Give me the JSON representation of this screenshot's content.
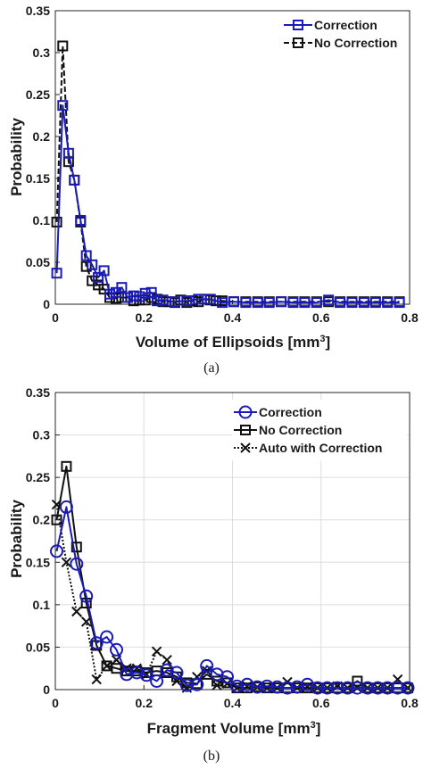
{
  "chart_data": [
    {
      "type": "line",
      "panel_label": "(a)",
      "xlabel_main": "Volume of Ellipsoids [mm",
      "xlabel_sup": "3",
      "xlabel_end": "]",
      "ylabel": "Probability",
      "xlim": [
        0,
        0.8
      ],
      "ylim": [
        0,
        0.35
      ],
      "xticks": [
        "0",
        "0.2",
        "0.4",
        "0.6",
        "0.8"
      ],
      "yticks": [
        "0",
        "0.05",
        "0.1",
        "0.15",
        "0.2",
        "0.25",
        "0.3",
        "0.35"
      ],
      "grid": false,
      "legend": "top-right",
      "series": [
        {
          "name": "Correction",
          "color": "#1a1ab8",
          "dash": "solid",
          "marker": "square",
          "x": [
            0.0033,
            0.0167,
            0.03,
            0.043,
            0.057,
            0.07,
            0.083,
            0.097,
            0.11,
            0.123,
            0.137,
            0.15,
            0.163,
            0.177,
            0.19,
            0.203,
            0.217,
            0.23,
            0.243,
            0.27,
            0.297,
            0.323,
            0.35,
            0.377,
            0.403,
            0.43,
            0.457,
            0.483,
            0.51,
            0.537,
            0.563,
            0.59,
            0.617,
            0.643,
            0.67,
            0.697,
            0.723,
            0.75,
            0.777
          ],
          "y": [
            0.037,
            0.237,
            0.18,
            0.148,
            0.1,
            0.058,
            0.047,
            0.032,
            0.04,
            0.012,
            0.014,
            0.02,
            0.008,
            0.01,
            0.009,
            0.013,
            0.014,
            0.004,
            0.005,
            0.003,
            0.004,
            0.006,
            0.006,
            0.002,
            0.003,
            0.002,
            0.002,
            0.002,
            0.003,
            0.002,
            0.002,
            0.002,
            0.005,
            0.002,
            0.002,
            0.002,
            0.002,
            0.002,
            0.002
          ]
        },
        {
          "name": "No Correction",
          "color": "#111111",
          "dash": "dashed",
          "marker": "square",
          "x": [
            0.0033,
            0.0167,
            0.03,
            0.043,
            0.057,
            0.07,
            0.083,
            0.097,
            0.11,
            0.123,
            0.137,
            0.15,
            0.163,
            0.177,
            0.19,
            0.203,
            0.217,
            0.23,
            0.243,
            0.257,
            0.27,
            0.283,
            0.297,
            0.31,
            0.323,
            0.337,
            0.35,
            0.363,
            0.377,
            0.403,
            0.43,
            0.457,
            0.483,
            0.51,
            0.537,
            0.563,
            0.59,
            0.617,
            0.643,
            0.67,
            0.697,
            0.723,
            0.75,
            0.777
          ],
          "y": [
            0.098,
            0.308,
            0.17,
            0.148,
            0.098,
            0.045,
            0.028,
            0.023,
            0.018,
            0.008,
            0.007,
            0.008,
            0.008,
            0.004,
            0.005,
            0.005,
            0.008,
            0.006,
            0.003,
            0.003,
            0.002,
            0.005,
            0.002,
            0.004,
            0.003,
            0.006,
            0.005,
            0.004,
            0.004,
            0.003,
            0.003,
            0.003,
            0.003,
            0.003,
            0.003,
            0.003,
            0.003,
            0.003,
            0.003,
            0.003,
            0.003,
            0.003,
            0.003,
            0.003
          ]
        }
      ]
    },
    {
      "type": "line",
      "panel_label": "(b)",
      "xlabel_main": "Fragment Volume [mm",
      "xlabel_sup": "3",
      "xlabel_end": "]",
      "ylabel": "Probability",
      "xlim": [
        0,
        0.8
      ],
      "ylim": [
        0,
        0.35
      ],
      "xticks": [
        "0",
        "0.2",
        "0.4",
        "0.6",
        "0.8"
      ],
      "yticks": [
        "0",
        "0.05",
        "0.1",
        "0.15",
        "0.2",
        "0.25",
        "0.3",
        "0.35"
      ],
      "grid": true,
      "legend": "top-right",
      "series": [
        {
          "name": "Correction",
          "color": "#1a1ab8",
          "dash": "solid",
          "marker": "circle",
          "x": [
            0.003,
            0.025,
            0.048,
            0.07,
            0.093,
            0.116,
            0.138,
            0.161,
            0.184,
            0.206,
            0.229,
            0.252,
            0.274,
            0.297,
            0.32,
            0.342,
            0.365,
            0.388,
            0.41,
            0.433,
            0.456,
            0.478,
            0.501,
            0.524,
            0.546,
            0.569,
            0.592,
            0.614,
            0.637,
            0.66,
            0.682,
            0.705,
            0.728,
            0.75,
            0.773,
            0.796
          ],
          "y": [
            0.163,
            0.215,
            0.148,
            0.11,
            0.055,
            0.062,
            0.047,
            0.018,
            0.02,
            0.017,
            0.01,
            0.023,
            0.02,
            0.005,
            0.006,
            0.028,
            0.018,
            0.015,
            0.004,
            0.006,
            0.003,
            0.004,
            0.003,
            0.002,
            0.003,
            0.006,
            0.002,
            0.002,
            0.002,
            0.002,
            0.002,
            0.002,
            0.002,
            0.002,
            0.002,
            0.002
          ]
        },
        {
          "name": "No Correction",
          "color": "#111111",
          "dash": "solid",
          "marker": "square",
          "x": [
            0.003,
            0.025,
            0.048,
            0.07,
            0.093,
            0.116,
            0.138,
            0.161,
            0.184,
            0.206,
            0.229,
            0.252,
            0.274,
            0.297,
            0.32,
            0.342,
            0.365,
            0.388,
            0.41,
            0.433,
            0.456,
            0.478,
            0.501,
            0.524,
            0.546,
            0.569,
            0.592,
            0.614,
            0.637,
            0.66,
            0.682,
            0.705,
            0.728,
            0.75,
            0.773,
            0.796
          ],
          "y": [
            0.2,
            0.263,
            0.168,
            0.102,
            0.052,
            0.028,
            0.025,
            0.022,
            0.022,
            0.02,
            0.022,
            0.02,
            0.015,
            0.008,
            0.007,
            0.018,
            0.01,
            0.008,
            0.002,
            0.002,
            0.003,
            0.002,
            0.002,
            0.002,
            0.002,
            0.002,
            0.002,
            0.002,
            0.002,
            0.002,
            0.01,
            0.002,
            0.002,
            0.002,
            0.002,
            0.002
          ]
        },
        {
          "name": "Auto with Correction",
          "color": "#111111",
          "dash": "dotted",
          "marker": "x",
          "x": [
            0.003,
            0.025,
            0.048,
            0.07,
            0.093,
            0.116,
            0.138,
            0.161,
            0.184,
            0.206,
            0.229,
            0.252,
            0.274,
            0.297,
            0.32,
            0.342,
            0.365,
            0.388,
            0.41,
            0.433,
            0.456,
            0.478,
            0.501,
            0.524,
            0.546,
            0.569,
            0.592,
            0.614,
            0.637,
            0.66,
            0.682,
            0.705,
            0.728,
            0.75,
            0.773,
            0.796
          ],
          "y": [
            0.218,
            0.15,
            0.092,
            0.08,
            0.012,
            0.028,
            0.035,
            0.025,
            0.025,
            0.018,
            0.045,
            0.035,
            0.01,
            0.002,
            0.015,
            0.022,
            0.005,
            0.007,
            0.002,
            0.004,
            0.003,
            0.002,
            0.002,
            0.009,
            0.002,
            0.003,
            0.002,
            0.002,
            0.004,
            0.002,
            0.002,
            0.002,
            0.002,
            0.002,
            0.012,
            0.002
          ]
        }
      ]
    }
  ]
}
